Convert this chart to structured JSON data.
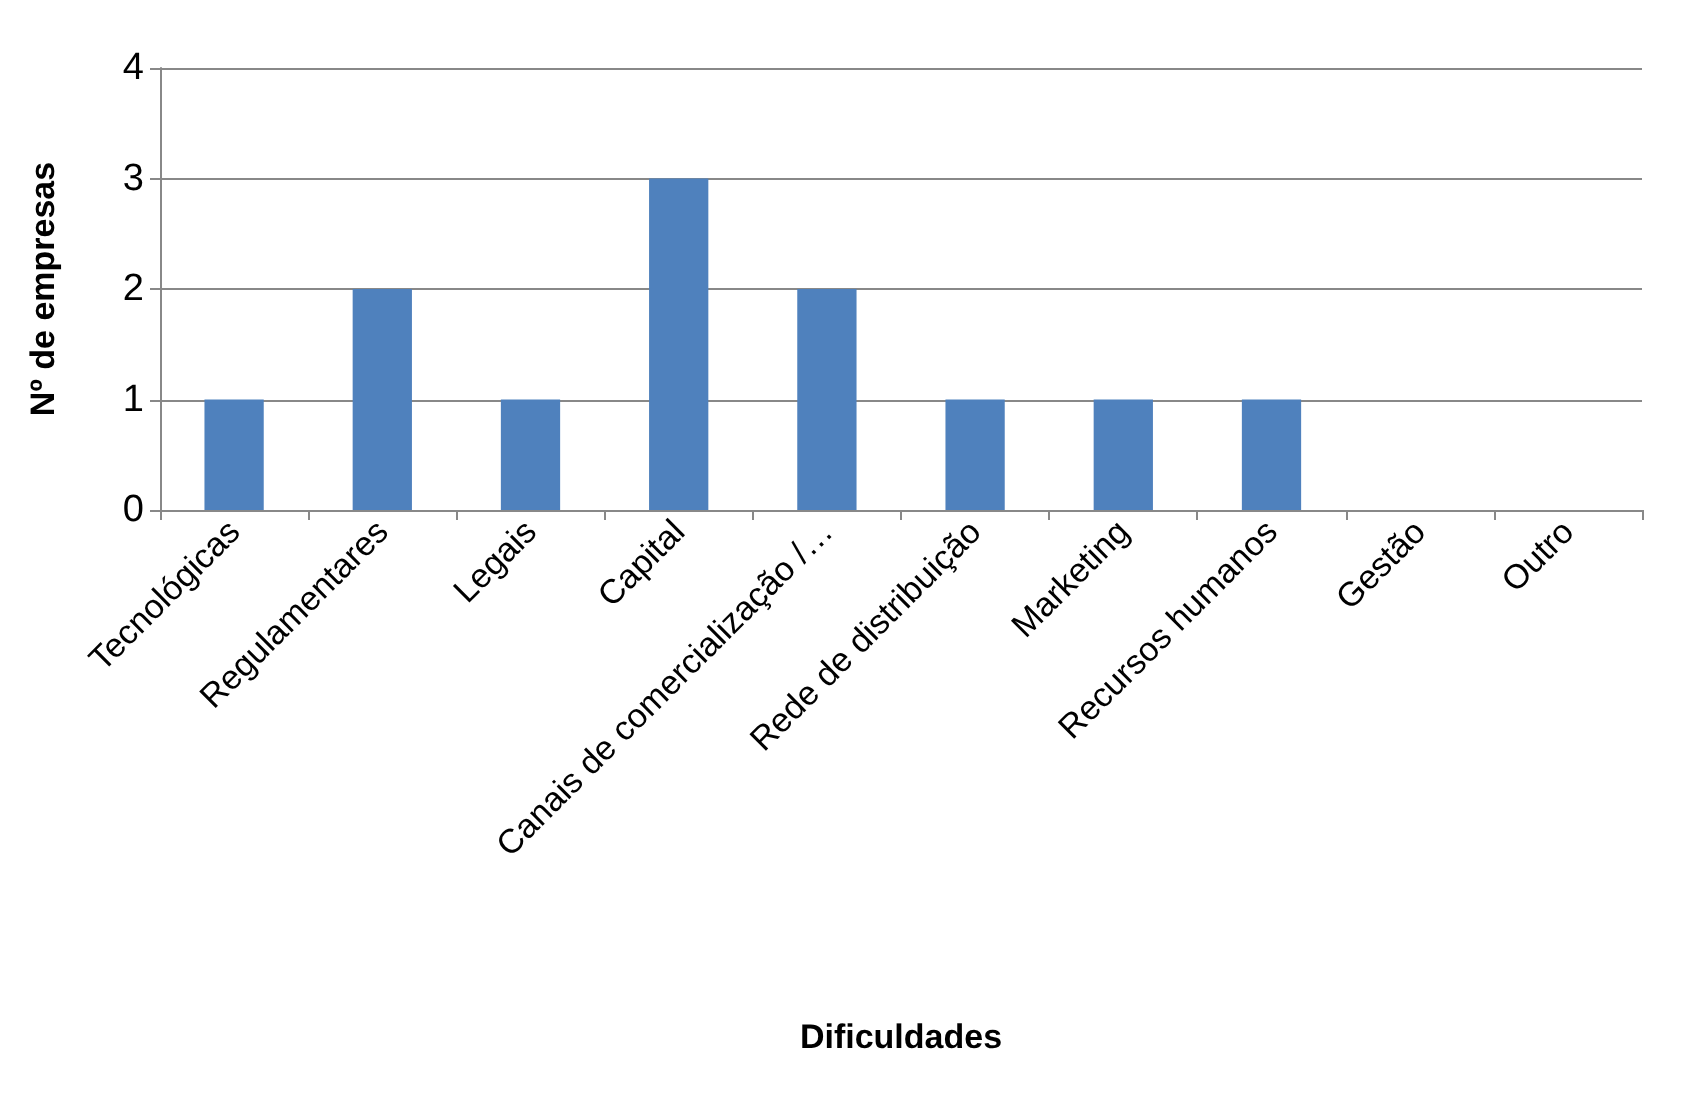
{
  "chart_data": {
    "type": "bar",
    "xlabel": "Dificuldades",
    "ylabel": "Nº de empresas",
    "categories": [
      "Tecnológicas",
      "Regulamentares",
      "Legais",
      "Capital",
      "Canais de comercialização /…",
      "Rede de distribuição",
      "Marketing",
      "Recursos humanos",
      "Gestão",
      "Outro"
    ],
    "values": [
      1,
      2,
      1,
      3,
      2,
      1,
      1,
      1,
      0,
      0
    ],
    "color": "#4f81bd",
    "ylim": [
      0,
      4
    ],
    "yticks": [
      0,
      1,
      2,
      3,
      4
    ],
    "grid": "y"
  }
}
